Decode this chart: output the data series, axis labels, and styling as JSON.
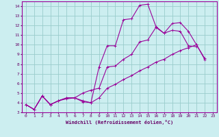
{
  "bg_color": "#cceef0",
  "line_color": "#990099",
  "grid_color": "#99cccc",
  "xlabel": "Windchill (Refroidissement éolien,°C)",
  "xlabel_color": "#660066",
  "tick_color": "#660066",
  "xlim": [
    -0.5,
    23.5
  ],
  "ylim": [
    3,
    14.5
  ],
  "xticks": [
    0,
    1,
    2,
    3,
    4,
    5,
    6,
    7,
    8,
    9,
    10,
    11,
    12,
    13,
    14,
    15,
    16,
    17,
    18,
    19,
    20,
    21,
    22,
    23
  ],
  "yticks": [
    3,
    4,
    5,
    6,
    7,
    8,
    9,
    10,
    11,
    12,
    13,
    14
  ],
  "line1_x": [
    0,
    1,
    2,
    3,
    4,
    5,
    6,
    7,
    8,
    9,
    10,
    11,
    12,
    13,
    14,
    15,
    16,
    17,
    18,
    19,
    20,
    21
  ],
  "line1_y": [
    3.8,
    3.3,
    4.7,
    3.8,
    4.2,
    4.5,
    4.5,
    4.1,
    4.0,
    7.7,
    9.9,
    9.9,
    12.6,
    12.7,
    14.1,
    14.2,
    11.9,
    11.2,
    11.5,
    11.4,
    9.9,
    9.8
  ],
  "line2_x": [
    0,
    1,
    2,
    3,
    4,
    5,
    6,
    7,
    8,
    9,
    10,
    11,
    12,
    13,
    14,
    15,
    16,
    17,
    18,
    19,
    20,
    21,
    22
  ],
  "line2_y": [
    3.8,
    3.3,
    4.7,
    3.8,
    4.2,
    4.5,
    4.5,
    5.0,
    5.3,
    5.5,
    7.7,
    7.8,
    8.5,
    9.0,
    10.3,
    10.5,
    11.8,
    11.2,
    12.2,
    12.3,
    11.4,
    10.0,
    8.6
  ],
  "line3_x": [
    0,
    1,
    2,
    3,
    4,
    5,
    6,
    7,
    8,
    9,
    10,
    11,
    12,
    13,
    14,
    15,
    16,
    17,
    18,
    19,
    20,
    21,
    22
  ],
  "line3_y": [
    3.8,
    3.3,
    4.7,
    3.8,
    4.2,
    4.4,
    4.5,
    4.2,
    4.0,
    4.5,
    5.5,
    5.9,
    6.4,
    6.8,
    7.3,
    7.7,
    8.2,
    8.5,
    9.0,
    9.4,
    9.7,
    10.0,
    8.5
  ]
}
